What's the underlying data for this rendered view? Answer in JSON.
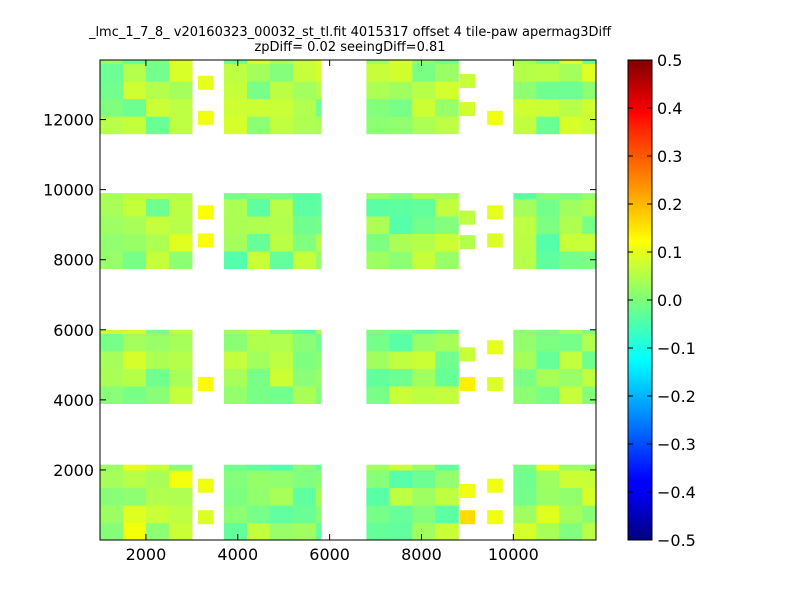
{
  "chart_data": {
    "type": "heatmap",
    "title_line1": "_lmc_1_7_8_ v20160323_00032_st_tl.fit 4015317 offset 4 tile-paw apermag3Diff",
    "title_line2": "zpDiff= 0.02 seeingDiff=0.81",
    "xlabel": "",
    "ylabel": "",
    "xlim": [
      1000,
      11800
    ],
    "ylim": [
      0,
      13700
    ],
    "xticks": [
      2000,
      4000,
      6000,
      8000,
      10000
    ],
    "yticks": [
      2000,
      4000,
      6000,
      8000,
      10000,
      12000
    ],
    "colormap": "jet",
    "colorbar": {
      "vmin": -0.5,
      "vmax": 0.5,
      "ticks": [
        0.5,
        0.4,
        0.3,
        0.2,
        0.1,
        0.0,
        -0.1,
        -0.2,
        -0.3,
        -0.4,
        -0.5
      ],
      "tick_labels": [
        "0.5",
        "0.4",
        "0.3",
        "0.2",
        "0.1",
        "0.0",
        "−0.1",
        "−0.2",
        "−0.3",
        "−0.4",
        "−0.5"
      ]
    },
    "grid": false,
    "chip_x_ranges": [
      [
        1000,
        3000
      ],
      [
        3700,
        5800
      ],
      [
        6800,
        8800
      ],
      [
        10000,
        11800
      ]
    ],
    "chip_y_ranges": [
      [
        0,
        2150
      ],
      [
        3900,
        6000
      ],
      [
        7750,
        9900
      ],
      [
        11600,
        13700
      ]
    ],
    "cell_size": 500,
    "sparse_cells": [
      {
        "x": 3300,
        "y": 12050,
        "value": 0.11
      },
      {
        "x": 3300,
        "y": 13050,
        "value": 0.1
      },
      {
        "x": 3300,
        "y": 8550,
        "value": 0.12
      },
      {
        "x": 3300,
        "y": 9350,
        "value": 0.12
      },
      {
        "x": 3300,
        "y": 4450,
        "value": 0.13
      },
      {
        "x": 3300,
        "y": 1550,
        "value": 0.11
      },
      {
        "x": 3300,
        "y": 650,
        "value": 0.09
      },
      {
        "x": 9000,
        "y": 12300,
        "value": 0.08
      },
      {
        "x": 9000,
        "y": 13100,
        "value": 0.07
      },
      {
        "x": 9000,
        "y": 8500,
        "value": 0.05
      },
      {
        "x": 9000,
        "y": 9200,
        "value": 0.06
      },
      {
        "x": 9000,
        "y": 4450,
        "value": 0.14
      },
      {
        "x": 9000,
        "y": 5300,
        "value": 0.07
      },
      {
        "x": 9000,
        "y": 1400,
        "value": 0.11
      },
      {
        "x": 9000,
        "y": 650,
        "value": 0.16
      },
      {
        "x": 9600,
        "y": 12050,
        "value": 0.11
      },
      {
        "x": 9600,
        "y": 9350,
        "value": 0.1
      },
      {
        "x": 9600,
        "y": 8550,
        "value": 0.09
      },
      {
        "x": 9600,
        "y": 5500,
        "value": 0.1
      },
      {
        "x": 9600,
        "y": 4450,
        "value": 0.09
      },
      {
        "x": 9600,
        "y": 1550,
        "value": 0.11
      },
      {
        "x": 9600,
        "y": 650,
        "value": 0.11
      }
    ]
  }
}
